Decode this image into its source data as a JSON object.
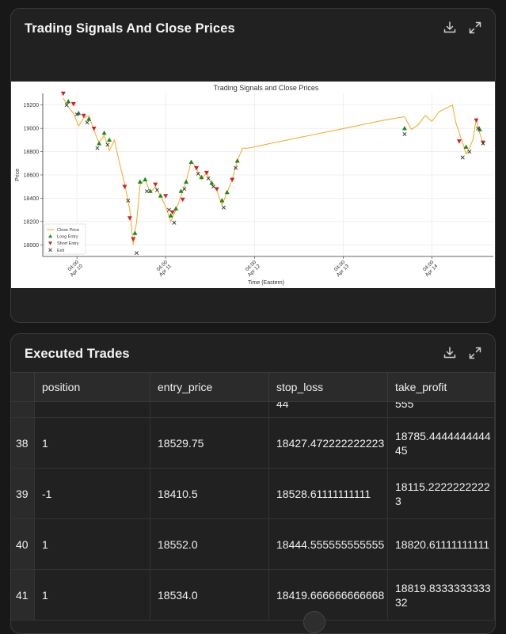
{
  "chart_card": {
    "title": "Trading Signals And Close Prices",
    "download_icon": "download-icon",
    "expand_icon": "expand-icon"
  },
  "chart_data": {
    "type": "line",
    "title": "Trading Signals and Close Prices",
    "xlabel": "Time (Eastern)",
    "ylabel": "Price",
    "ylim": [
      17900,
      19300
    ],
    "yticks": [
      "18000",
      "18200",
      "18400",
      "18600",
      "18800",
      "19000",
      "19200"
    ],
    "xticks": [
      {
        "top": "04:00",
        "bottom": "Apr 10"
      },
      {
        "top": "04:00",
        "bottom": "Apr 11"
      },
      {
        "top": "04:00",
        "bottom": "Apr 12"
      },
      {
        "top": "04:00",
        "bottom": "Apr 13"
      },
      {
        "top": "04:00",
        "bottom": "Apr 14"
      }
    ],
    "grid": true,
    "legend_position": "bottom-left",
    "legend": [
      "Close Price",
      "Long Entry",
      "Short Entry",
      "Exit"
    ],
    "series_colors": {
      "close": "#f5a623",
      "long": "#1a8a1a",
      "short": "#d62020",
      "exit": "#333333"
    },
    "close_price": [
      [
        0.6,
        19260
      ],
      [
        0.75,
        19180
      ],
      [
        0.9,
        19130
      ],
      [
        1.05,
        19020
      ],
      [
        1.2,
        19090
      ],
      [
        1.35,
        19110
      ],
      [
        1.5,
        18980
      ],
      [
        1.65,
        18880
      ],
      [
        1.8,
        18940
      ],
      [
        1.95,
        18810
      ],
      [
        2.1,
        18900
      ],
      [
        2.25,
        18700
      ],
      [
        2.4,
        18520
      ],
      [
        2.55,
        18300
      ],
      [
        2.65,
        18000
      ],
      [
        2.75,
        18200
      ],
      [
        2.85,
        18520
      ],
      [
        3.0,
        18560
      ],
      [
        3.15,
        18450
      ],
      [
        3.3,
        18500
      ],
      [
        3.45,
        18420
      ],
      [
        3.6,
        18330
      ],
      [
        3.75,
        18200
      ],
      [
        3.9,
        18300
      ],
      [
        4.05,
        18420
      ],
      [
        4.2,
        18540
      ],
      [
        4.35,
        18720
      ],
      [
        4.5,
        18660
      ],
      [
        4.65,
        18560
      ],
      [
        4.8,
        18620
      ],
      [
        4.95,
        18520
      ],
      [
        5.1,
        18470
      ],
      [
        5.25,
        18340
      ],
      [
        5.4,
        18450
      ],
      [
        5.55,
        18560
      ],
      [
        5.7,
        18720
      ],
      [
        5.85,
        18830
      ],
      [
        6.0,
        18830
      ],
      [
        7.5,
        18920
      ],
      [
        9.0,
        19010
      ],
      [
        10.0,
        19070
      ],
      [
        10.6,
        19100
      ],
      [
        10.8,
        18990
      ],
      [
        11.0,
        19030
      ],
      [
        11.2,
        19110
      ],
      [
        11.4,
        19060
      ],
      [
        11.6,
        19140
      ],
      [
        11.8,
        19170
      ],
      [
        12.0,
        19200
      ],
      [
        12.1,
        19050
      ],
      [
        12.2,
        18960
      ],
      [
        12.3,
        18880
      ],
      [
        12.4,
        18780
      ],
      [
        12.5,
        18830
      ],
      [
        12.6,
        18900
      ],
      [
        12.7,
        19080
      ],
      [
        12.8,
        18960
      ],
      [
        12.9,
        18870
      ]
    ],
    "long_entries": [
      [
        0.75,
        19230
      ],
      [
        1.05,
        19130
      ],
      [
        1.35,
        19080
      ],
      [
        1.65,
        18870
      ],
      [
        1.8,
        18960
      ],
      [
        1.95,
        18900
      ],
      [
        2.7,
        18100
      ],
      [
        2.85,
        18540
      ],
      [
        3.0,
        18560
      ],
      [
        3.15,
        18460
      ],
      [
        3.45,
        18420
      ],
      [
        3.75,
        18250
      ],
      [
        3.9,
        18310
      ],
      [
        4.05,
        18460
      ],
      [
        4.2,
        18540
      ],
      [
        4.35,
        18710
      ],
      [
        4.65,
        18580
      ],
      [
        4.95,
        18530
      ],
      [
        5.25,
        18380
      ],
      [
        5.4,
        18450
      ],
      [
        5.7,
        18720
      ],
      [
        10.6,
        19000
      ],
      [
        12.4,
        18840
      ],
      [
        12.8,
        18990
      ]
    ],
    "short_entries": [
      [
        0.6,
        19300
      ],
      [
        0.9,
        19210
      ],
      [
        1.2,
        19110
      ],
      [
        1.5,
        19000
      ],
      [
        2.4,
        18500
      ],
      [
        2.55,
        18230
      ],
      [
        2.65,
        18050
      ],
      [
        3.3,
        18520
      ],
      [
        3.6,
        18420
      ],
      [
        3.8,
        18280
      ],
      [
        4.1,
        18390
      ],
      [
        4.5,
        18660
      ],
      [
        4.8,
        18620
      ],
      [
        5.1,
        18480
      ],
      [
        5.55,
        18560
      ],
      [
        12.2,
        18890
      ],
      [
        12.7,
        19070
      ],
      [
        12.9,
        18880
      ]
    ],
    "exits": [
      [
        0.7,
        19200
      ],
      [
        1.0,
        19120
      ],
      [
        1.3,
        19050
      ],
      [
        1.6,
        18830
      ],
      [
        1.9,
        18860
      ],
      [
        2.5,
        18380
      ],
      [
        2.75,
        17930
      ],
      [
        3.05,
        18460
      ],
      [
        3.35,
        18470
      ],
      [
        3.7,
        18300
      ],
      [
        3.85,
        18190
      ],
      [
        4.15,
        18480
      ],
      [
        4.55,
        18610
      ],
      [
        4.85,
        18570
      ],
      [
        5.0,
        18500
      ],
      [
        5.3,
        18320
      ],
      [
        5.65,
        18660
      ],
      [
        10.6,
        18950
      ],
      [
        12.3,
        18750
      ],
      [
        12.5,
        18800
      ],
      [
        12.75,
        19000
      ],
      [
        12.9,
        18870
      ]
    ]
  },
  "trades_card": {
    "title": "Executed Trades",
    "download_icon": "download-icon",
    "expand_icon": "expand-icon",
    "columns": [
      "position",
      "entry_price",
      "stop_loss",
      "take_profit"
    ],
    "partial_row": {
      "stop_loss": "44",
      "take_profit": "555"
    },
    "rows": [
      {
        "index": "38",
        "position": "1",
        "entry_price": "18529.75",
        "stop_loss": "18427.472222222223",
        "take_profit": "18785.444444444445"
      },
      {
        "index": "39",
        "position": "-1",
        "entry_price": "18410.5",
        "stop_loss": "18528.61111111111",
        "take_profit": "18115.22222222223"
      },
      {
        "index": "40",
        "position": "1",
        "entry_price": "18552.0",
        "stop_loss": "18444.555555555555",
        "take_profit": "18820.61111111111"
      },
      {
        "index": "41",
        "position": "1",
        "entry_price": "18534.0",
        "stop_loss": "18419.666666666668",
        "take_profit": "18819.833333333332"
      }
    ]
  }
}
